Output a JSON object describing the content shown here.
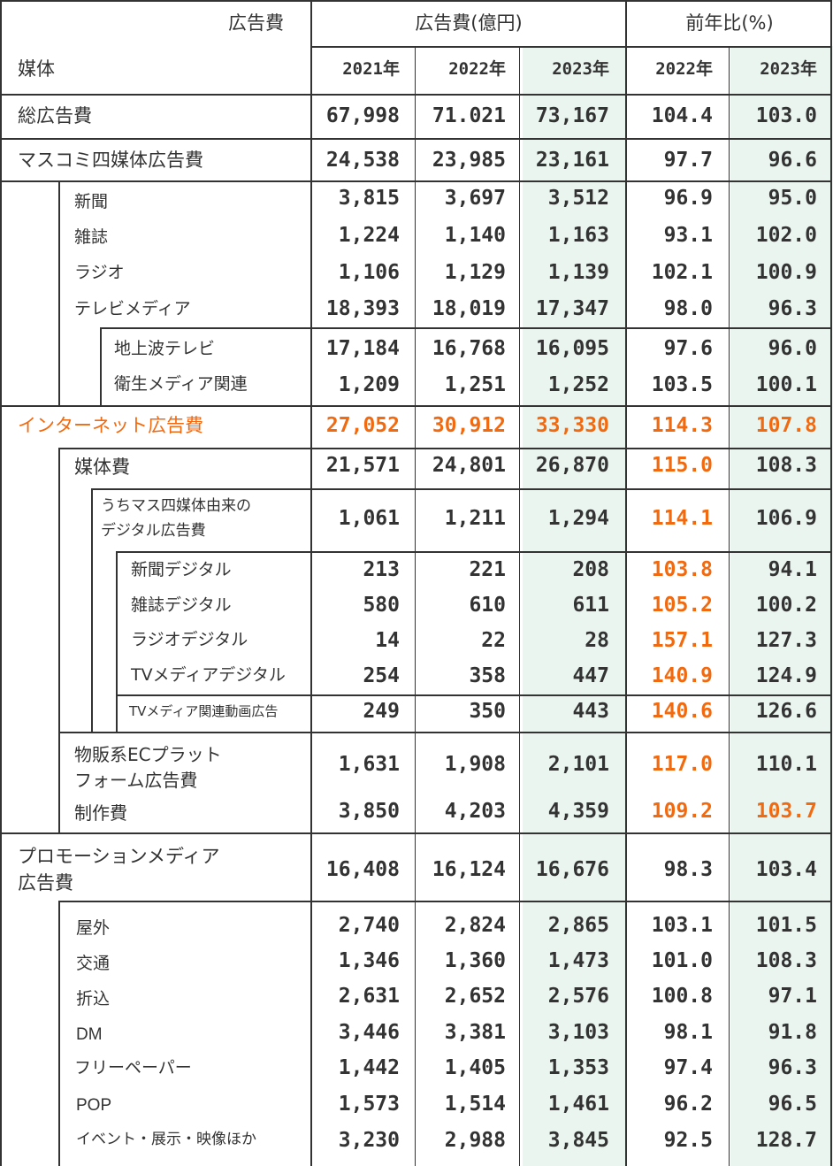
{
  "colors": {
    "accent": "#f26a10",
    "highlight": "#ebf5f0",
    "line": "#333333"
  },
  "header": {
    "corner_top": "広告費",
    "corner_bottom": "媒体",
    "group_amount": "広告費(億円)",
    "group_ratio": "前年比(%)",
    "years": [
      "2021年",
      "2022年",
      "2023年",
      "2022年",
      "2023年"
    ]
  },
  "rows": [
    {
      "label": "総広告費",
      "values": [
        "67,998",
        "71.021",
        "73,167",
        "104.4",
        "103.0"
      ]
    },
    {
      "label": "マスコミ四媒体広告費",
      "values": [
        "24,538",
        "23,985",
        "23,161",
        "97.7",
        "96.6"
      ]
    },
    {
      "label": "新聞",
      "values": [
        "3,815",
        "3,697",
        "3,512",
        "96.9",
        "95.0"
      ]
    },
    {
      "label": "雑誌",
      "values": [
        "1,224",
        "1,140",
        "1,163",
        "93.1",
        "102.0"
      ]
    },
    {
      "label": "ラジオ",
      "values": [
        "1,106",
        "1,129",
        "1,139",
        "102.1",
        "100.9"
      ]
    },
    {
      "label": "テレビメディア",
      "values": [
        "18,393",
        "18,019",
        "17,347",
        "98.0",
        "96.3"
      ]
    },
    {
      "label": "地上波テレビ",
      "values": [
        "17,184",
        "16,768",
        "16,095",
        "97.6",
        "96.0"
      ]
    },
    {
      "label": "衛生メディア関連",
      "values": [
        "1,209",
        "1,251",
        "1,252",
        "103.5",
        "100.1"
      ]
    },
    {
      "label": "インターネット広告費",
      "values": [
        "27,052",
        "30,912",
        "33,330",
        "114.3",
        "107.8"
      ]
    },
    {
      "label": "媒体費",
      "values": [
        "21,571",
        "24,801",
        "26,870",
        "115.0",
        "108.3"
      ]
    },
    {
      "label_lines": [
        "うちマス四媒体由来の",
        "デジタル広告費"
      ],
      "values": [
        "1,061",
        "1,211",
        "1,294",
        "114.1",
        "106.9"
      ]
    },
    {
      "label": "新聞デジタル",
      "values": [
        "213",
        "221",
        "208",
        "103.8",
        "94.1"
      ]
    },
    {
      "label": "雑誌デジタル",
      "values": [
        "580",
        "610",
        "611",
        "105.2",
        "100.2"
      ]
    },
    {
      "label": "ラジオデジタル",
      "values": [
        "14",
        "22",
        "28",
        "157.1",
        "127.3"
      ]
    },
    {
      "label": "TVメディアデジタル",
      "values": [
        "254",
        "358",
        "447",
        "140.9",
        "124.9"
      ]
    },
    {
      "label": "TVメディア関連動画広告",
      "values": [
        "249",
        "350",
        "443",
        "140.6",
        "126.6"
      ]
    },
    {
      "label_lines": [
        "物販系ECプラット",
        "フォーム広告費"
      ],
      "values": [
        "1,631",
        "1,908",
        "2,101",
        "117.0",
        "110.1"
      ]
    },
    {
      "label": "制作費",
      "values": [
        "3,850",
        "4,203",
        "4,359",
        "109.2",
        "103.7"
      ]
    },
    {
      "label_lines": [
        "プロモーションメディア",
        "広告費"
      ],
      "values": [
        "16,408",
        "16,124",
        "16,676",
        "98.3",
        "103.4"
      ]
    },
    {
      "label": "屋外",
      "values": [
        "2,740",
        "2,824",
        "2,865",
        "103.1",
        "101.5"
      ]
    },
    {
      "label": "交通",
      "values": [
        "1,346",
        "1,360",
        "1,473",
        "101.0",
        "108.3"
      ]
    },
    {
      "label": "折込",
      "values": [
        "2,631",
        "2,652",
        "2,576",
        "100.8",
        "97.1"
      ]
    },
    {
      "label": "DM",
      "values": [
        "3,446",
        "3,381",
        "3,103",
        "98.1",
        "91.8"
      ]
    },
    {
      "label": "フリーペーパー",
      "values": [
        "1,442",
        "1,405",
        "1,353",
        "97.4",
        "96.3"
      ]
    },
    {
      "label": "POP",
      "values": [
        "1,573",
        "1,514",
        "1,461",
        "96.2",
        "96.5"
      ]
    },
    {
      "label": "イベント・展示・映像ほか",
      "values": [
        "3,230",
        "2,988",
        "3,845",
        "92.5",
        "128.7"
      ]
    }
  ]
}
